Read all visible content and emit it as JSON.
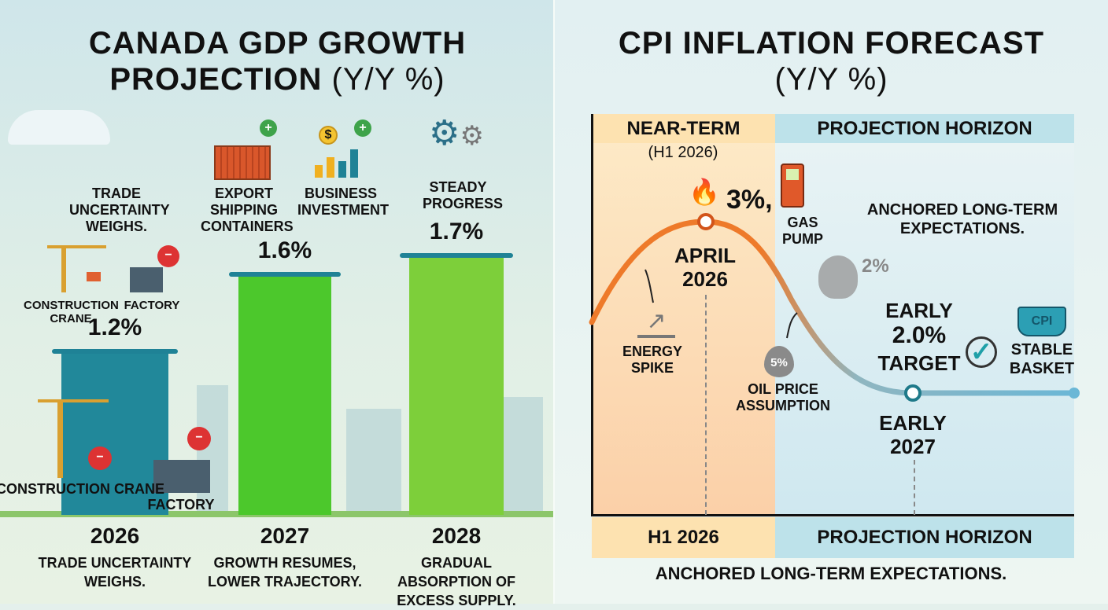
{
  "left": {
    "title_line1": "CANADA GDP GROWTH",
    "title_line2_bold": "PROJECTION",
    "title_line2_light": "(Y/Y %)",
    "annotations": {
      "trade": "TRADE UNCERTAINTY WEIGHS.",
      "crane_top": "CONSTRUCTION CRANE",
      "factory_top": "FACTORY",
      "crane_bottom": "CONSTRUCTION CRANE",
      "factory_bottom": "FACTORY",
      "export": "EXPORT SHIPPING CONTAINERS",
      "business": "BUSINESS INVESTMENT",
      "steady": "STEADY PROGRESS"
    }
  },
  "right": {
    "title_line1": "CPI INFLATION FORECAST",
    "title_line2": "(Y/Y %)",
    "near_term": "NEAR-TERM",
    "near_term_sub": "(H1 2026)",
    "projection_horizon": "PROJECTION HORIZON",
    "peak_value": "3%,",
    "peak_label_1": "APRIL",
    "peak_label_2": "2026",
    "gas_pump": "GAS PUMP",
    "anchored": "ANCHORED LONG-TERM EXPECTATIONS.",
    "energy_spike": "ENERGY SPIKE",
    "gas_pct": "2%",
    "oil_pct": "5%",
    "oil_price": "OIL PRICE ASSUMPTION",
    "early": "EARLY",
    "target_value": "2.0%",
    "target": "TARGET",
    "cpi_basket": "CPI",
    "stable_basket": "STABLE BASKET",
    "early_2027_1": "EARLY",
    "early_2027_2": "2027",
    "bottom_h1": "H1 2026",
    "bottom_projection": "PROJECTION HORIZON",
    "footer": "ANCHORED LONG-TERM EXPECTATIONS."
  },
  "colors": {
    "bar_2026": "#21889a",
    "bar_2027": "#4cc82c",
    "bar_2028": "#7dcf3a",
    "curve_start": "#ee7a2a",
    "curve_end": "#6bb7d6",
    "near_band": "#fde2b0",
    "proj_band": "#bde2ea"
  },
  "chart_data": [
    {
      "type": "bar",
      "title": "CANADA GDP GROWTH PROJECTION (Y/Y %)",
      "categories": [
        "2026",
        "2027",
        "2028"
      ],
      "values": [
        1.2,
        1.6,
        1.7
      ],
      "value_labels": [
        "1.2%",
        "1.6%",
        "1.7%"
      ],
      "descriptions": [
        "TRADE UNCERTAINTY WEIGHS.",
        "GROWTH RESUMES, LOWER TRAJECTORY.",
        "GRADUAL ABSORPTION OF EXCESS SUPPLY."
      ],
      "xlabel": "",
      "ylabel": "Y/Y %"
    },
    {
      "type": "line",
      "title": "CPI INFLATION FORECAST (Y/Y %)",
      "points": [
        {
          "x": "April 2026",
          "y": 3.0
        },
        {
          "x": "Early 2027",
          "y": 2.0
        }
      ],
      "xlabel": "",
      "ylabel": "Y/Y %",
      "regions": [
        "NEAR-TERM (H1 2026)",
        "PROJECTION HORIZON"
      ]
    }
  ]
}
